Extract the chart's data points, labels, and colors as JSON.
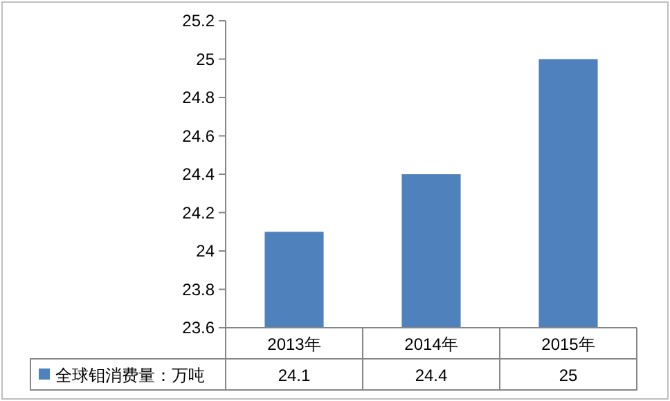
{
  "chart_data": {
    "type": "bar",
    "categories": [
      "2013年",
      "2014年",
      "2015年"
    ],
    "series": [
      {
        "name": "全球钼消费量：万吨",
        "color": "#4f81bd",
        "values": [
          24.1,
          24.4,
          25
        ]
      }
    ],
    "ylim": [
      23.6,
      25.2
    ],
    "yticks": [
      23.6,
      23.8,
      24,
      24.2,
      24.4,
      24.6,
      24.8,
      25,
      25.2
    ],
    "data_labels": true,
    "grid": false,
    "legend": "bottom left"
  }
}
